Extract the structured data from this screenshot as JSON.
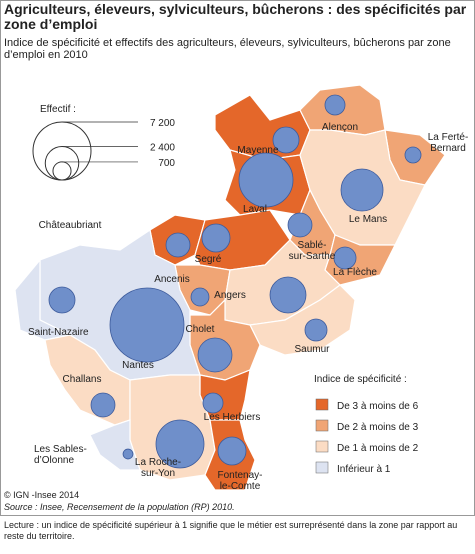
{
  "header": {
    "title": "Agriculteurs, éleveurs, sylviculteurs, bûcherons : des spécificités par zone d’emploi",
    "subtitle": "Indice de spécificité et effectifs des agriculteurs, éleveurs, sylviculteurs, bûcherons par zone d’emploi en 2010"
  },
  "size_legend": {
    "title": "Effectif :",
    "values": [
      {
        "value": 7200,
        "label": "7 200"
      },
      {
        "value": 2400,
        "label": "2 400"
      },
      {
        "value": 700,
        "label": "700"
      }
    ]
  },
  "class_legend": {
    "title": "Indice de spécificité :",
    "classes": [
      {
        "label": "De 3 à moins de 6",
        "color": "#e4672a"
      },
      {
        "label": "De 2 à moins de 3",
        "color": "#f0a575"
      },
      {
        "label": "De 1 à moins de 2",
        "color": "#fbdcc4"
      },
      {
        "label": "Inférieur à 1",
        "color": "#dde3f1"
      }
    ]
  },
  "zones": [
    {
      "label": [
        "Mayenne"
      ],
      "class": 0,
      "effectif": 1450
    },
    {
      "label": [
        "Laval"
      ],
      "class": 0,
      "effectif": 6240
    },
    {
      "label": [
        "Alençon"
      ],
      "class": 1,
      "effectif": 860
    },
    {
      "label": [
        "La Ferté-",
        "Bernard"
      ],
      "class": 1,
      "effectif": 550
    },
    {
      "label": [
        "Le Mans"
      ],
      "class": 2,
      "effectif": 3780
    },
    {
      "label": [
        "Sablé-",
        "sur-Sarthe"
      ],
      "class": 1,
      "effectif": 1230
    },
    {
      "label": [
        "La Flèche"
      ],
      "class": 1,
      "effectif": 1040
    },
    {
      "label": [
        "Châteaubriant"
      ],
      "class": 0,
      "effectif": 1230
    },
    {
      "label": [
        "Segré"
      ],
      "class": 0,
      "effectif": 1680
    },
    {
      "label": [
        "Ancenis"
      ],
      "class": 1,
      "effectif": 690
    },
    {
      "label": [
        "Angers"
      ],
      "class": 2,
      "effectif": 2770
    },
    {
      "label": [
        "Saumur"
      ],
      "class": 2,
      "effectif": 1040
    },
    {
      "label": [
        "Cholet"
      ],
      "class": 1,
      "effectif": 2470
    },
    {
      "label": [
        "Nantes"
      ],
      "class": 3,
      "effectif": 11720
    },
    {
      "label": [
        "Saint-Nazaire"
      ],
      "class": 3,
      "effectif": 1450
    },
    {
      "label": [
        "Challans"
      ],
      "class": 2,
      "effectif": 1230
    },
    {
      "label": [
        "Les Herbiers"
      ],
      "class": 0,
      "effectif": 860
    },
    {
      "label": [
        "La Roche-",
        "sur-Yon"
      ],
      "class": 2,
      "effectif": 4930
    },
    {
      "label": [
        "Les Sables-",
        "d’Olonne"
      ],
      "class": 3,
      "effectif": 210
    },
    {
      "label": [
        "Fontenay-",
        "le-Comte"
      ],
      "class": 0,
      "effectif": 1680
    }
  ],
  "credit": "© IGN -Insee 2014",
  "source": "Source : Insee, Recensement de la population (RP) 2010.",
  "footnote": "Lecture : un indice de spécificité supérieur à 1 signifie que le métier est surreprésenté dans la zone par rapport au reste du territoire."
}
